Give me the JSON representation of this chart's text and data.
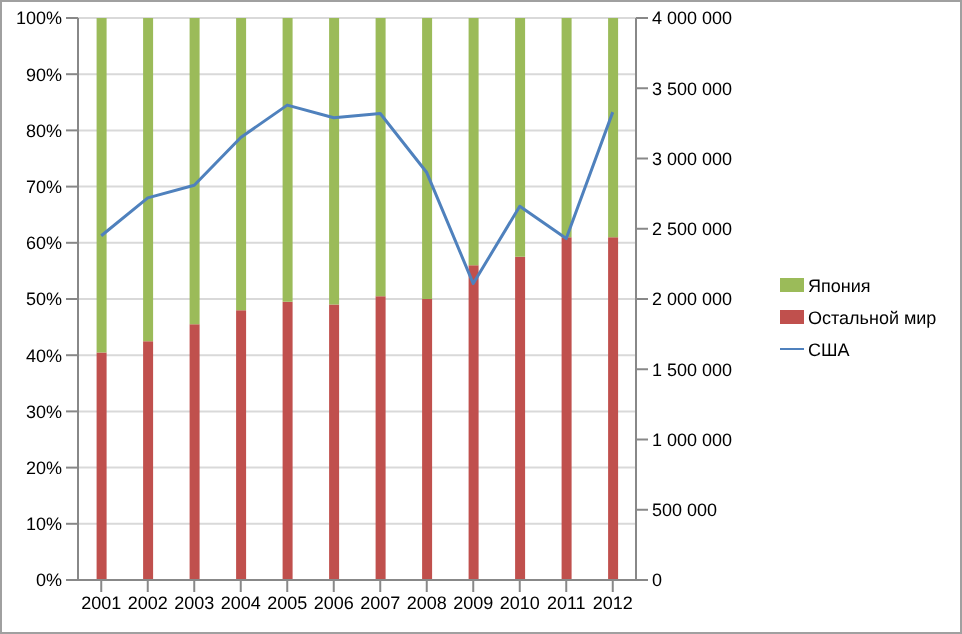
{
  "chart_data": {
    "type": "bar",
    "stacked": true,
    "categories": [
      "2001",
      "2002",
      "2003",
      "2004",
      "2005",
      "2006",
      "2007",
      "2008",
      "2009",
      "2010",
      "2011",
      "2012"
    ],
    "series": [
      {
        "name": "Остальной мир",
        "color": "#c0504d",
        "values": [
          40.5,
          42.5,
          45.5,
          48,
          49.5,
          49,
          50.5,
          50,
          56,
          57.5,
          61,
          61
        ]
      },
      {
        "name": "Япония",
        "color": "#9bbb59",
        "values": [
          59.5,
          57.5,
          54.5,
          52,
          50.5,
          51,
          49.5,
          50,
          44,
          42.5,
          39,
          39
        ]
      },
      {
        "name": "США",
        "type": "line",
        "axis": "y2",
        "color": "#4f81bd",
        "marker": "none",
        "values": [
          2450000,
          2720000,
          2810000,
          3150000,
          3380000,
          3290000,
          3320000,
          2900000,
          2110000,
          2660000,
          2430000,
          3330000
        ]
      }
    ],
    "ylim": [
      0,
      100
    ],
    "yticks": [
      {
        "value": 0,
        "label": "0%"
      },
      {
        "value": 10,
        "label": "10%"
      },
      {
        "value": 20,
        "label": "20%"
      },
      {
        "value": 30,
        "label": "30%"
      },
      {
        "value": 40,
        "label": "40%"
      },
      {
        "value": 50,
        "label": "50%"
      },
      {
        "value": 60,
        "label": "60%"
      },
      {
        "value": 70,
        "label": "70%"
      },
      {
        "value": 80,
        "label": "80%"
      },
      {
        "value": 90,
        "label": "90%"
      },
      {
        "value": 100,
        "label": "100%"
      }
    ],
    "y2lim": [
      0,
      4000000
    ],
    "y2ticks": [
      0,
      {
        "value": 500000,
        "label": "500 000"
      },
      {
        "value": 1000000,
        "label": "1 000 000"
      },
      {
        "value": 1500000,
        "label": "1 500 000"
      },
      {
        "value": 2000000,
        "label": "2 000 000"
      },
      {
        "value": 2500000,
        "label": "2 500 000"
      },
      {
        "value": 3000000,
        "label": "3 000 000"
      },
      {
        "value": 3500000,
        "label": "3 500 000"
      },
      {
        "value": 4000000,
        "label": "4 000 000"
      }
    ],
    "grid": "y",
    "legend": "right"
  }
}
